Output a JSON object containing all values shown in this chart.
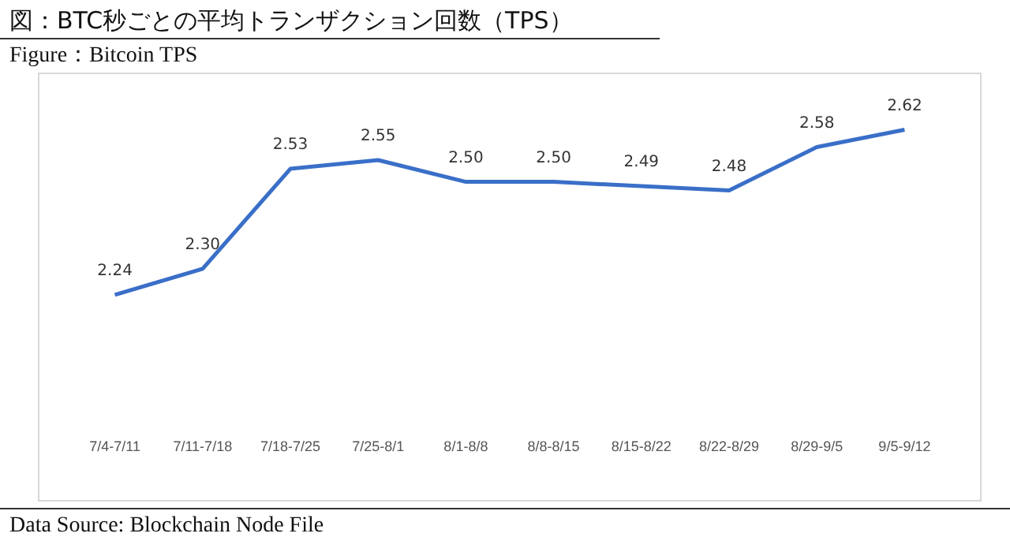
{
  "chart_data": {
    "type": "line",
    "title": "図：BTC秒ごとの平均トランザクション回数（TPS）",
    "subtitle": "Figure：Bitcoin TPS",
    "categories": [
      "7/4-7/11",
      "7/11-7/18",
      "7/18-7/25",
      "7/25-8/1",
      "8/1-8/8",
      "8/8-8/15",
      "8/15-8/22",
      "8/22-8/29",
      "8/29-9/5",
      "9/5-9/12"
    ],
    "series": [
      {
        "color": "#3a6fc8",
        "values": [
          2.24,
          2.3,
          2.53,
          2.55,
          2.5,
          2.5,
          2.49,
          2.48,
          2.58,
          2.62
        ],
        "value_labels": [
          "2.24",
          "2.30",
          "2.53",
          "2.55",
          "2.50",
          "2.50",
          "2.49",
          "2.48",
          "2.58",
          "2.62"
        ]
      }
    ],
    "grid": false,
    "legend": false,
    "marker": "none",
    "line_style": "solid",
    "tick_labels": "x",
    "annotations": [
      "Data Source: Blockchain Node File"
    ]
  }
}
